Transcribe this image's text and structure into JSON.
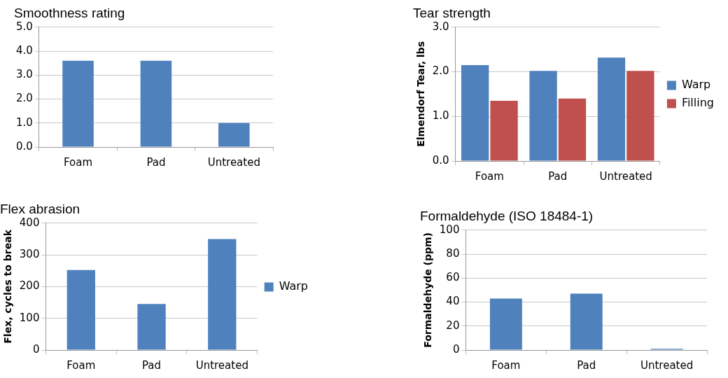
{
  "chart_data": [
    {
      "type": "bar",
      "title": "Smoothness rating",
      "categories": [
        "Foam",
        "Pad",
        "Untreated"
      ],
      "series": [
        {
          "color": "#4f81bd",
          "values": [
            3.6,
            3.6,
            1.0
          ]
        }
      ],
      "ylim": [
        0,
        5
      ],
      "yticks": [
        {
          "value": 0,
          "label": "0.0"
        },
        {
          "value": 1,
          "label": "1.0"
        },
        {
          "value": 2,
          "label": "2.0"
        },
        {
          "value": 3,
          "label": "3.0"
        },
        {
          "value": 4,
          "label": "4.0"
        },
        {
          "value": 5,
          "label": "5.0"
        }
      ],
      "grid": "y",
      "legend": false
    },
    {
      "type": "bar",
      "title": "Tear strength",
      "ylabel": "Elmendorf Tear, lbs",
      "categories": [
        "Foam",
        "Pad",
        "Untreated"
      ],
      "series": [
        {
          "name": "Warp",
          "color": "#4f81bd",
          "values": [
            2.15,
            2.02,
            2.32
          ]
        },
        {
          "name": "Filling",
          "color": "#c0504d",
          "values": [
            1.35,
            1.4,
            2.02
          ]
        }
      ],
      "ylim": [
        0,
        3
      ],
      "yticks": [
        {
          "value": 0,
          "label": "0.0"
        },
        {
          "value": 1,
          "label": "1.0"
        },
        {
          "value": 2,
          "label": "2.0"
        },
        {
          "value": 3,
          "label": "3.0"
        }
      ],
      "grid": "y",
      "legend": "right"
    },
    {
      "type": "bar",
      "title": "Flex abrasion",
      "ylabel": "Flex, cycles to break",
      "categories": [
        "Foam",
        "Pad",
        "Untreated"
      ],
      "series": [
        {
          "name": "Warp",
          "color": "#4f81bd",
          "values": [
            252,
            145,
            350
          ]
        }
      ],
      "ylim": [
        0,
        400
      ],
      "yticks": [
        0,
        100,
        200,
        300,
        400
      ],
      "grid": "y",
      "legend": "right"
    },
    {
      "type": "bar",
      "title": "Formaldehyde (ISO 18484-1)",
      "ylabel": "Formaldehyde (ppm)",
      "categories": [
        "Foam",
        "Pad",
        "Untreated"
      ],
      "series": [
        {
          "color": "#4f81bd",
          "values": [
            43,
            47,
            1
          ]
        }
      ],
      "ylim": [
        0,
        100
      ],
      "yticks": [
        0,
        20,
        40,
        60,
        80,
        100
      ],
      "grid": "y",
      "legend": false
    }
  ]
}
